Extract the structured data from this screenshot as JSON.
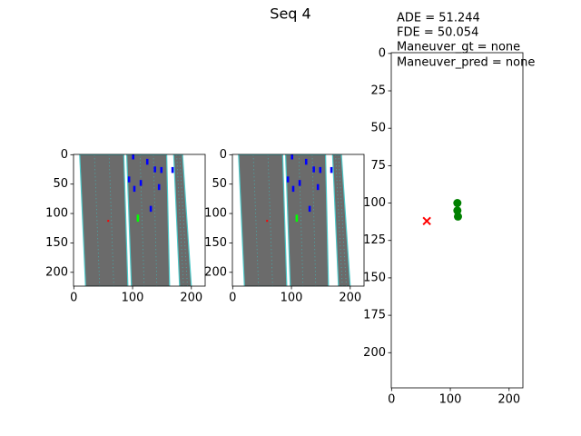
{
  "figure": {
    "title": "Seq 4",
    "annotations": [
      "ADE = 51.244",
      "FDE = 50.054",
      "Maneuver_gt = none",
      "Maneuver_pred = none"
    ]
  },
  "chart_data": [
    {
      "type": "image",
      "xlim": [
        -0.5,
        223.5
      ],
      "ylim": [
        223.5,
        -0.5
      ],
      "xticks": [
        0,
        100,
        200
      ],
      "yticks": [
        0,
        50,
        100,
        150,
        200
      ]
    },
    {
      "type": "image",
      "xlim": [
        -0.5,
        223.5
      ],
      "ylim": [
        223.5,
        -0.5
      ],
      "xticks": [
        0,
        100,
        200
      ],
      "yticks": [
        0,
        50,
        100,
        150,
        200
      ]
    },
    {
      "type": "scatter",
      "xlim": [
        -0.5,
        223.5
      ],
      "ylim": [
        223.5,
        -0.5
      ],
      "xticks": [
        0,
        100,
        200
      ],
      "yticks": [
        0,
        25,
        50,
        75,
        100,
        125,
        150,
        175,
        200
      ],
      "series": [
        {
          "color": "red",
          "marker": "x",
          "x": [
            60
          ],
          "values": [
            112
          ]
        },
        {
          "color": "green",
          "marker": "o",
          "x": [
            112,
            112,
            113
          ],
          "values": [
            100,
            105,
            109
          ]
        }
      ]
    }
  ]
}
